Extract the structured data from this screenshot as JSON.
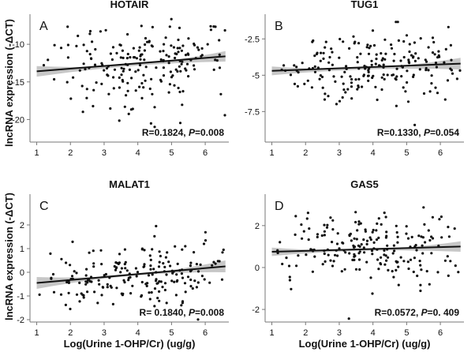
{
  "y_axis_title": "lncRNA expression (-ΔCT)",
  "x_axis_title": "Log(Urine 1-OHP/Cr)  (ug/g)",
  "chart_data": [
    {
      "type": "scatter",
      "title": "HOTAIR",
      "panel_letter": "A",
      "stat_r": "R=0.1824, ",
      "stat_p_label": "P",
      "stat_p_value": "=0.008",
      "xlim": [
        0.8,
        6.7
      ],
      "ylim": [
        -23,
        -6
      ],
      "xticks": [
        1,
        2,
        3,
        4,
        5,
        6
      ],
      "yticks": [
        -10,
        -15,
        -20
      ],
      "fit": {
        "x": [
          1.0,
          6.6
        ],
        "y": [
          -13.6,
          -11.6
        ]
      },
      "ci": {
        "lower": [
          -14.3,
          -12.3
        ],
        "mid": [
          -12.9,
          -12.7
        ],
        "upper": [
          -12.9,
          -10.9
        ]
      },
      "grid": false
    },
    {
      "type": "scatter",
      "title": "TUG1",
      "panel_letter": "B",
      "stat_r": "R=0.1330, ",
      "stat_p_label": "P",
      "stat_p_value": "=0.054",
      "xlim": [
        0.8,
        6.7
      ],
      "ylim": [
        -9.6,
        -0.8
      ],
      "xticks": [
        1,
        2,
        3,
        4,
        5,
        6
      ],
      "yticks": [
        -2.5,
        -5.0,
        -7.5
      ],
      "fit": {
        "x": [
          1.0,
          6.6
        ],
        "y": [
          -4.7,
          -4.2
        ]
      },
      "ci": {
        "lower": [
          -5.0,
          -4.6
        ],
        "mid": [
          -4.6,
          -4.5
        ],
        "upper": [
          -4.4,
          -3.8
        ]
      },
      "grid": false
    },
    {
      "type": "scatter",
      "title": "MALAT1",
      "panel_letter": "C",
      "stat_r": "R= 0.1840, ",
      "stat_p_label": "P",
      "stat_p_value": "=0.008",
      "xlim": [
        0.8,
        6.7
      ],
      "ylim": [
        -2.1,
        3.3
      ],
      "xticks": [
        1,
        2,
        3,
        4,
        5,
        6
      ],
      "yticks": [
        2,
        1,
        0,
        -1,
        -2
      ],
      "fit": {
        "x": [
          1.0,
          6.6
        ],
        "y": [
          -0.45,
          0.25
        ]
      },
      "ci": {
        "lower": [
          -0.7,
          0.0
        ],
        "mid": [
          -0.15,
          -0.1
        ],
        "upper": [
          -0.2,
          0.5
        ]
      },
      "grid": false
    },
    {
      "type": "scatter",
      "title": "GAS5",
      "panel_letter": "D",
      "stat_r": "R=0.0572, ",
      "stat_p_label": "P",
      "stat_p_value": "=0. 409",
      "xlim": [
        0.8,
        6.7
      ],
      "ylim": [
        -2.6,
        3.5
      ],
      "xticks": [
        1,
        2,
        3,
        4,
        5,
        6
      ],
      "yticks": [
        2,
        0,
        -2
      ],
      "fit": {
        "x": [
          1.0,
          6.6
        ],
        "y": [
          0.75,
          1.0
        ]
      },
      "ci": {
        "lower": [
          0.55,
          0.75
        ],
        "mid": [
          0.8,
          0.85
        ],
        "upper": [
          0.95,
          1.25
        ]
      },
      "grid": false
    }
  ]
}
